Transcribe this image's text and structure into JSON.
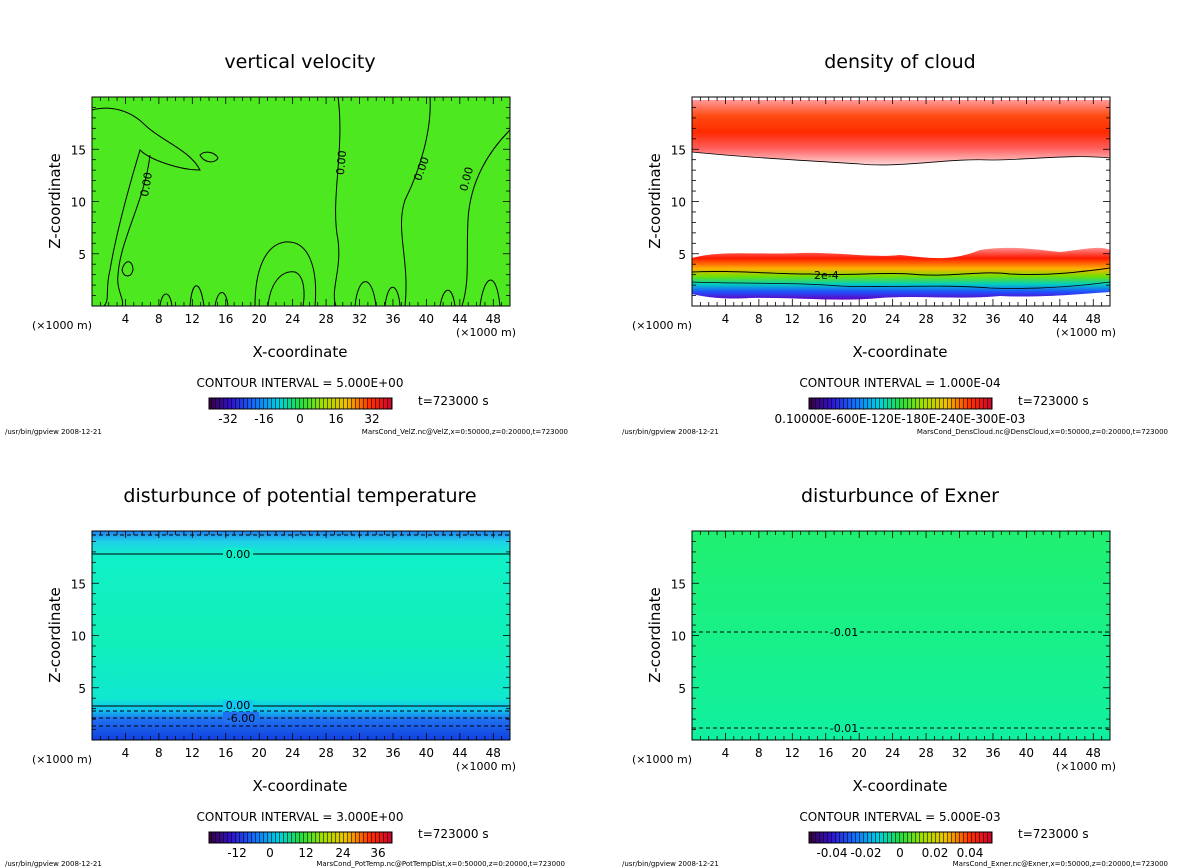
{
  "footer_left": "/usr/bin/gpview  2008-12-21",
  "x_unit": "(×1000 m)",
  "panels": [
    {
      "title": "vertical velocity",
      "xlabel": "X-coordinate",
      "ylabel": "Z-coordinate",
      "contour_interval": "CONTOUR INTERVAL = 5.000E+00",
      "time": "t=723000  s",
      "colorbar_ticks": [
        "-32",
        "-16",
        "0",
        "16",
        "32"
      ],
      "contour_labels": [
        "0.00",
        "0.00",
        "0.00",
        "0.00"
      ],
      "file": "MarsCond_VelZ.nc@VelZ,x=0:50000,z=0:20000,t=723000"
    },
    {
      "title": "density of cloud",
      "xlabel": "X-coordinate",
      "ylabel": "Z-coordinate",
      "contour_interval": "CONTOUR INTERVAL = 1.000E-04",
      "time": "t=723000  s",
      "colorbar_ticks_text": "0.10000E-600E-120E-180E-240E-300E-03",
      "contour_labels": [
        "2e-4"
      ],
      "file": "MarsCond_DensCloud.nc@DensCloud,x=0:50000,z=0:20000,t=723000"
    },
    {
      "title": "disturbunce of potential temperature",
      "xlabel": "X-coordinate",
      "ylabel": "Z-coordinate",
      "contour_interval": "CONTOUR INTERVAL = 3.000E+00",
      "time": "t=723000  s",
      "colorbar_ticks": [
        "-12",
        "0",
        "12",
        "24",
        "36"
      ],
      "contour_labels": [
        "0.00",
        "0.00",
        "-6.00"
      ],
      "file": "MarsCond_PotTemp.nc@PotTempDist,x=0:50000,z=0:20000,t=723000"
    },
    {
      "title": "disturbunce of Exner",
      "xlabel": "X-coordinate",
      "ylabel": "Z-coordinate",
      "contour_interval": "CONTOUR INTERVAL = 5.000E-03",
      "time": "t=723000  s",
      "colorbar_ticks": [
        "-0.04",
        "-0.02",
        "0",
        "0.02",
        "0.04"
      ],
      "contour_labels": [
        "-0.01",
        "-0.01"
      ],
      "file": "MarsCond_Exner.nc@Exner,x=0:50000,z=0:20000,t=723000"
    }
  ],
  "chart_data": [
    {
      "type": "heatmap",
      "title": "vertical velocity",
      "xlabel": "X-coordinate",
      "ylabel": "Z-coordinate",
      "x_ticks": [
        4,
        8,
        12,
        16,
        20,
        24,
        28,
        32,
        36,
        40,
        44,
        48
      ],
      "y_ticks": [
        5,
        10,
        15
      ],
      "xlim": [
        0,
        50
      ],
      "ylim": [
        0,
        20
      ],
      "colorbar_range": [
        -40,
        40
      ],
      "contour_levels": [
        0.0
      ]
    },
    {
      "type": "heatmap",
      "title": "density of cloud",
      "xlabel": "X-coordinate",
      "ylabel": "Z-coordinate",
      "x_ticks": [
        4,
        8,
        12,
        16,
        20,
        24,
        28,
        32,
        36,
        40,
        44,
        48
      ],
      "y_ticks": [
        5,
        10,
        15
      ],
      "xlim": [
        0,
        50
      ],
      "ylim": [
        0,
        20
      ],
      "cloud_layers_z": [
        [
          14,
          19.5
        ],
        [
          0.5,
          5.5
        ]
      ],
      "contour_levels": [
        0.0002
      ]
    },
    {
      "type": "heatmap",
      "title": "disturbunce of potential temperature",
      "xlabel": "X-coordinate",
      "ylabel": "Z-coordinate",
      "x_ticks": [
        4,
        8,
        12,
        16,
        20,
        24,
        28,
        32,
        36,
        40,
        44,
        48
      ],
      "y_ticks": [
        5,
        10,
        15
      ],
      "xlim": [
        0,
        50
      ],
      "ylim": [
        0,
        20
      ],
      "colorbar_range": [
        -18,
        42
      ],
      "contour_levels_z": [
        {
          "level": 0.0,
          "z": 17.9
        },
        {
          "level": 0.0,
          "z": 3.3
        },
        {
          "level": -6.0,
          "z": 2.2
        }
      ]
    },
    {
      "type": "heatmap",
      "title": "disturbunce of Exner",
      "xlabel": "X-coordinate",
      "ylabel": "Z-coordinate",
      "x_ticks": [
        4,
        8,
        12,
        16,
        20,
        24,
        28,
        32,
        36,
        40,
        44,
        48
      ],
      "y_ticks": [
        5,
        10,
        15
      ],
      "xlim": [
        0,
        50
      ],
      "ylim": [
        0,
        20
      ],
      "colorbar_range": [
        -0.05,
        0.05
      ],
      "contour_levels_z": [
        {
          "level": -0.01,
          "z": 10.4
        },
        {
          "level": -0.01,
          "z": 1.1
        }
      ]
    }
  ]
}
